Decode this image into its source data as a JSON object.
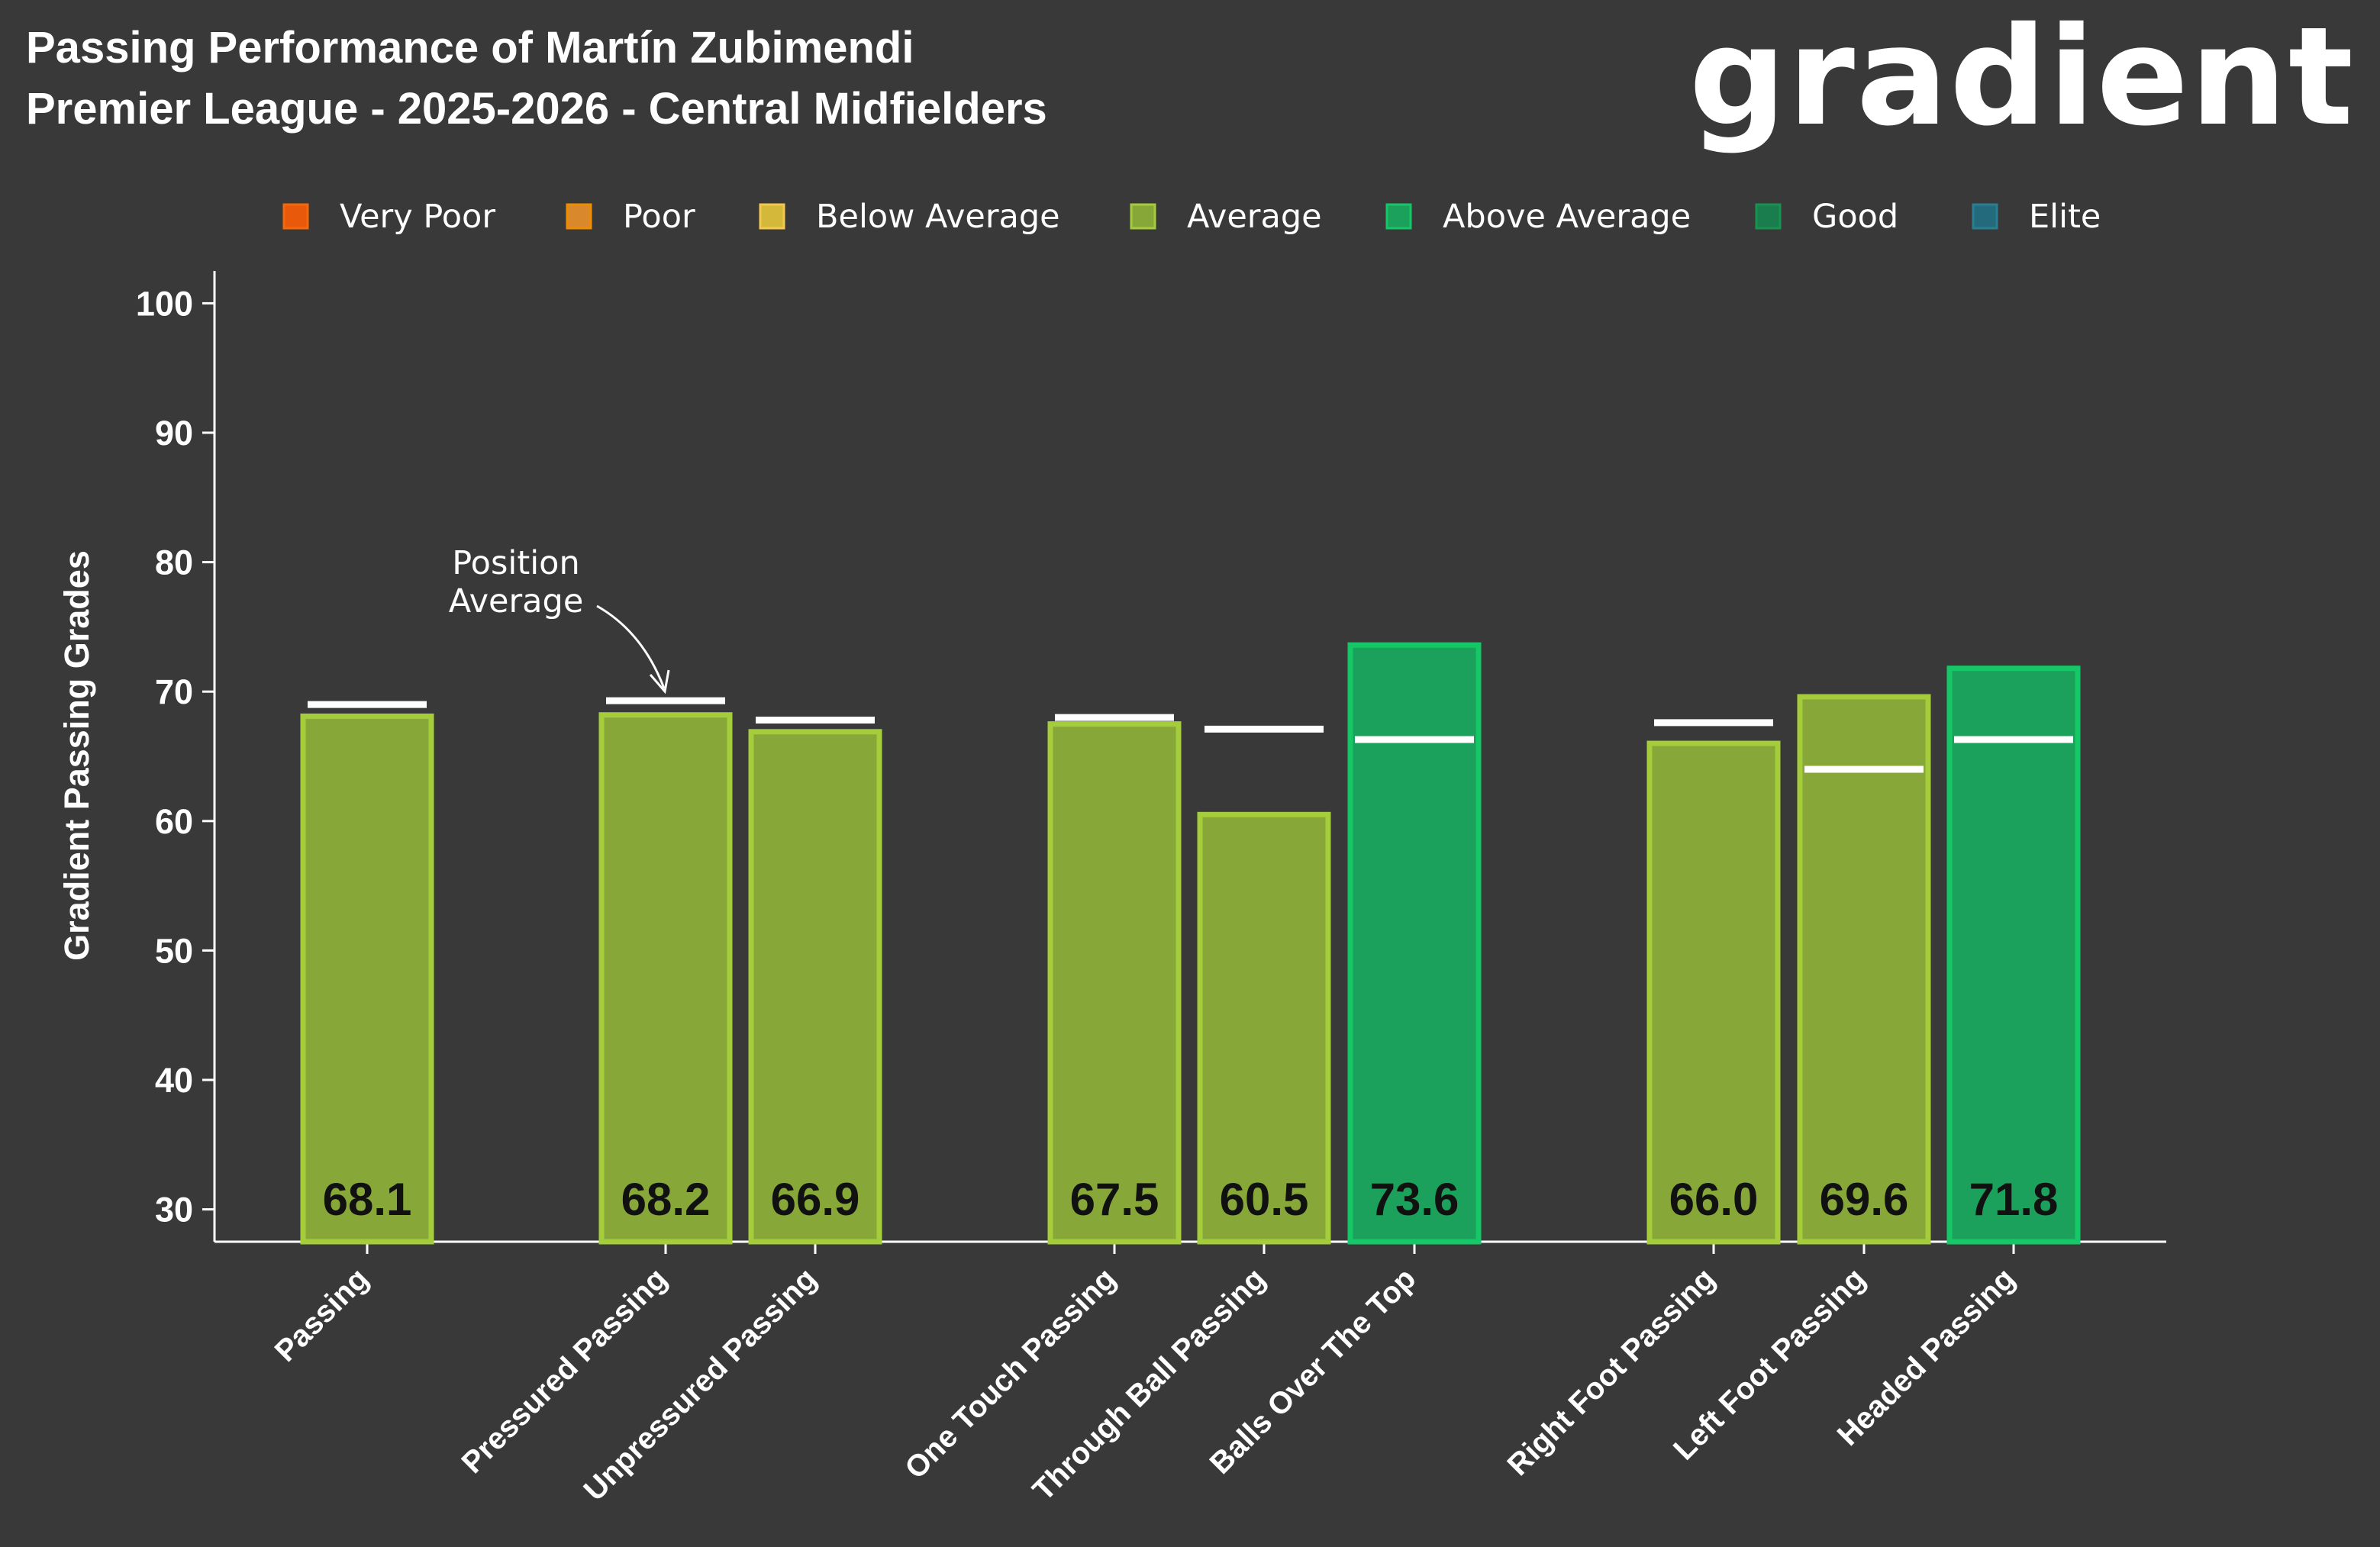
{
  "header": {
    "title_line1": "Passing Performance of Martín Zubimendi",
    "title_line2": "Premier League - 2025-2026 - Central Midfielders",
    "logo_text": "gradient"
  },
  "legend": [
    {
      "label": "Very Poor",
      "color": "#E8590C",
      "border": "#F76707"
    },
    {
      "label": "Poor",
      "color": "#D9882B",
      "border": "#F08C00"
    },
    {
      "label": "Below Average",
      "color": "#D4B83A",
      "border": "#F2C94C"
    },
    {
      "label": "Average",
      "color": "#87A839",
      "border": "#A5CC3A"
    },
    {
      "label": "Above Average",
      "color": "#1BA15C",
      "border": "#16C767"
    },
    {
      "label": "Good",
      "color": "#1A7D4E",
      "border": "#18924F"
    },
    {
      "label": "Elite",
      "color": "#236B7C",
      "border": "#2A7E91"
    }
  ],
  "annotation": {
    "line1": "Position",
    "line2": "Average"
  },
  "chart_data": {
    "type": "bar",
    "title": "Passing Performance of Martín Zubimendi",
    "subtitle": "Premier League - 2025-2026 - Central Midfielders",
    "xlabel": "",
    "ylabel": "Gradient Passing Grades",
    "ylim": [
      27.5,
      102.5
    ],
    "yticks": [
      30,
      40,
      50,
      60,
      70,
      80,
      90,
      100
    ],
    "grid": false,
    "legend_position": "top",
    "categories": [
      "Passing",
      "Pressured Passing",
      "Unpressured Passing",
      "One Touch Passing",
      "Through Ball Passing",
      "Balls Over The Top",
      "Right Foot Passing",
      "Left Foot Passing",
      "Headed Passing"
    ],
    "groups": [
      0,
      1,
      1,
      2,
      2,
      2,
      3,
      3,
      3
    ],
    "series": [
      {
        "name": "Martín Zubimendi",
        "values": [
          68.1,
          68.2,
          66.9,
          67.5,
          60.5,
          73.6,
          66.0,
          69.6,
          71.8
        ],
        "tiers": [
          "Average",
          "Average",
          "Average",
          "Average",
          "Average",
          "Above Average",
          "Average",
          "Average",
          "Above Average"
        ]
      },
      {
        "name": "Position Average",
        "values": [
          69.0,
          69.3,
          67.8,
          68.0,
          67.1,
          66.3,
          67.6,
          64.0,
          66.3
        ]
      }
    ],
    "value_labels": [
      "68.1",
      "68.2",
      "66.9",
      "67.5",
      "60.5",
      "73.6",
      "66.0",
      "69.6",
      "71.8"
    ]
  }
}
